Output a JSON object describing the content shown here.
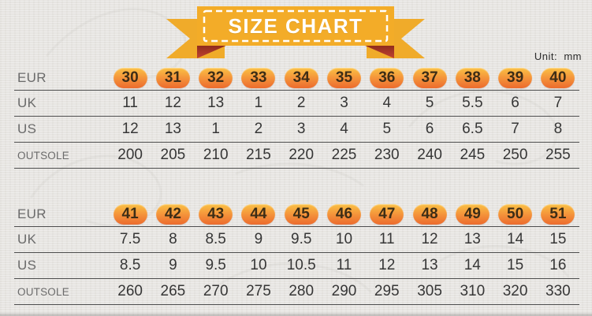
{
  "page": {
    "title": "SIZE CHART",
    "unit_label": "Unit:  mm"
  },
  "colors": {
    "background": "#e7e5e2",
    "ribbon_yellow": "#f3ac28",
    "ribbon_tail_yellow": "#f0ab2a",
    "ribbon_fold_red_dark": "#8e2a1c",
    "ribbon_fold_red_light": "#c14331",
    "dashed_border": "#ffffff",
    "badge_top": "#fac144",
    "badge_mid": "#f4923a",
    "badge_bot": "#ec6b2e",
    "table_line": "#4e4e4e",
    "label_gray": "#6b6b6b",
    "number_dark": "#363636"
  },
  "chart_data": {
    "type": "table",
    "title": "SIZE CHART",
    "unit_note": "Unit:  mm",
    "tables": [
      {
        "rows": [
          {
            "label": "EUR",
            "style": "badge",
            "values": [
              "30",
              "31",
              "32",
              "33",
              "34",
              "35",
              "36",
              "37",
              "38",
              "39",
              "40"
            ]
          },
          {
            "label": "UK",
            "style": "plain",
            "values": [
              "11",
              "12",
              "13",
              "1",
              "2",
              "3",
              "4",
              "5",
              "5.5",
              "6",
              "7"
            ]
          },
          {
            "label": "US",
            "style": "plain",
            "values": [
              "12",
              "13",
              "1",
              "2",
              "3",
              "4",
              "5",
              "6",
              "6.5",
              "7",
              "8"
            ]
          },
          {
            "label": "OUTSOLE",
            "style": "plain",
            "values": [
              "200",
              "205",
              "210",
              "215",
              "220",
              "225",
              "230",
              "240",
              "245",
              "250",
              "255"
            ]
          }
        ]
      },
      {
        "rows": [
          {
            "label": "EUR",
            "style": "badge",
            "values": [
              "41",
              "42",
              "43",
              "44",
              "45",
              "46",
              "47",
              "48",
              "49",
              "50",
              "51"
            ]
          },
          {
            "label": "UK",
            "style": "plain",
            "values": [
              "7.5",
              "8",
              "8.5",
              "9",
              "9.5",
              "10",
              "11",
              "12",
              "13",
              "14",
              "15"
            ]
          },
          {
            "label": "US",
            "style": "plain",
            "values": [
              "8.5",
              "9",
              "9.5",
              "10",
              "10.5",
              "11",
              "12",
              "13",
              "14",
              "15",
              "16"
            ]
          },
          {
            "label": "OUTSOLE",
            "style": "plain",
            "values": [
              "260",
              "265",
              "270",
              "275",
              "280",
              "290",
              "295",
              "305",
              "310",
              "320",
              "330"
            ]
          }
        ]
      }
    ]
  }
}
